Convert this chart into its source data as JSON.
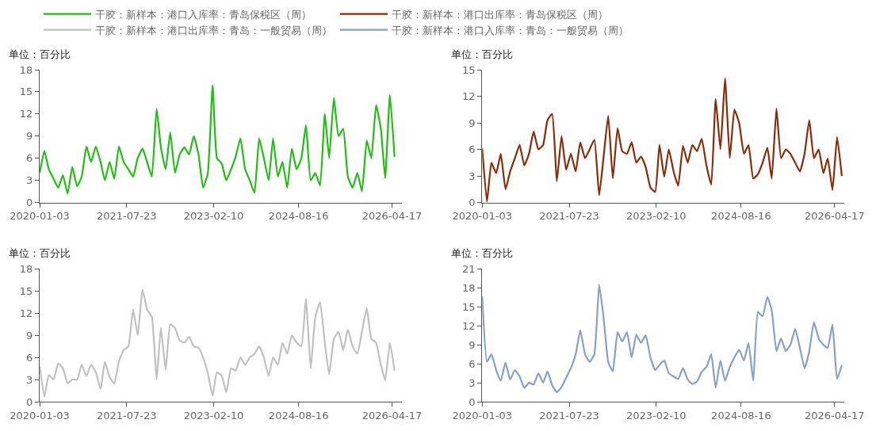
{
  "chart_data": [
    {
      "type": "line",
      "ylabel": "单位：百分比",
      "legend": "top",
      "xlim": [
        "2020-01-03",
        "2026-06-19"
      ],
      "xticks": [
        "2020-01-03",
        "2021-07-23",
        "2023-02-10",
        "2024-08-16",
        "2026-04-17"
      ],
      "ylim": [
        0,
        18
      ],
      "yticks": [
        0,
        3,
        6,
        9,
        12,
        15,
        18
      ],
      "x": [
        "2020-01-03",
        "2020-02-03",
        "2020-03-03",
        "2020-04-03",
        "2020-05-03",
        "2020-06-03",
        "2020-07-03",
        "2020-08-03",
        "2020-09-03",
        "2020-10-03",
        "2020-11-03",
        "2020-12-03",
        "2021-01-03",
        "2021-02-03",
        "2021-03-03",
        "2021-04-03",
        "2021-05-03",
        "2021-06-03",
        "2021-07-03",
        "2021-08-03",
        "2021-09-03",
        "2021-10-03",
        "2021-11-03",
        "2021-12-03",
        "2022-01-03",
        "2022-02-03",
        "2022-03-03",
        "2022-04-03",
        "2022-05-03",
        "2022-06-03",
        "2022-07-03",
        "2022-08-03",
        "2022-09-03",
        "2022-10-03",
        "2022-11-03",
        "2022-12-03",
        "2023-01-03",
        "2023-02-03",
        "2023-03-03",
        "2023-04-03",
        "2023-05-03",
        "2023-06-03",
        "2023-07-03",
        "2023-08-03",
        "2023-09-03",
        "2023-10-03",
        "2023-11-03",
        "2023-12-03",
        "2024-01-03",
        "2024-02-03",
        "2024-03-03",
        "2024-04-03",
        "2024-05-03",
        "2024-06-03",
        "2024-07-03",
        "2024-08-03",
        "2024-09-03",
        "2024-10-03",
        "2024-11-03",
        "2024-12-03",
        "2025-01-03",
        "2025-02-03",
        "2025-03-03",
        "2025-04-03",
        "2025-05-03",
        "2025-06-03",
        "2025-07-03",
        "2025-08-03",
        "2025-09-03",
        "2025-10-03",
        "2025-11-03",
        "2025-12-03",
        "2026-01-03",
        "2026-02-03",
        "2026-03-03",
        "2026-04-03",
        "2026-05-03"
      ],
      "series": [
        {
          "name": "干胶：新样本：港口入库率：青岛保税区（周）",
          "color": "#1fbf12",
          "values": [
            4.0,
            7.0,
            4.5,
            3.2,
            2.0,
            3.7,
            1.2,
            4.8,
            2.2,
            3.5,
            7.6,
            5.5,
            7.6,
            5.5,
            3.0,
            5.5,
            3.2,
            7.6,
            5.5,
            4.5,
            3.5,
            6.0,
            7.3,
            5.5,
            3.5,
            12.7,
            7.5,
            4.5,
            9.5,
            4.0,
            6.5,
            7.5,
            6.5,
            9.0,
            6.5,
            2.0,
            4.0,
            15.9,
            6.0,
            5.3,
            3.0,
            4.5,
            6.2,
            8.7,
            4.5,
            3.0,
            1.3,
            8.7,
            6.0,
            3.0,
            8.7,
            3.5,
            5.5,
            2.0,
            7.3,
            4.5,
            6.0,
            10.5,
            3.0,
            4.0,
            2.3,
            12.0,
            6.0,
            14.2,
            9.0,
            10.0,
            3.5,
            2.0,
            4.0,
            1.5,
            8.4,
            6.0,
            13.2,
            10.0,
            3.3,
            14.6,
            6.2
          ]
        }
      ]
    },
    {
      "type": "line",
      "ylabel": "单位：百分比",
      "legend": "top",
      "xlim": [
        "2020-01-03",
        "2026-06-19"
      ],
      "xticks": [
        "2020-01-03",
        "2021-07-23",
        "2023-02-10",
        "2024-08-16",
        "2026-04-17"
      ],
      "ylim": [
        0,
        15
      ],
      "yticks": [
        0,
        3,
        6,
        9,
        12,
        15
      ],
      "x": [
        "2020-01-03",
        "2020-02-03",
        "2020-03-03",
        "2020-04-03",
        "2020-05-03",
        "2020-06-03",
        "2020-07-03",
        "2020-08-03",
        "2020-09-03",
        "2020-10-03",
        "2020-11-03",
        "2020-12-03",
        "2021-01-03",
        "2021-02-03",
        "2021-03-03",
        "2021-04-03",
        "2021-05-03",
        "2021-06-03",
        "2021-07-03",
        "2021-08-03",
        "2021-09-03",
        "2021-10-03",
        "2021-11-03",
        "2021-12-03",
        "2022-01-03",
        "2022-02-03",
        "2022-03-03",
        "2022-04-03",
        "2022-05-03",
        "2022-06-03",
        "2022-07-03",
        "2022-08-03",
        "2022-09-03",
        "2022-10-03",
        "2022-11-03",
        "2022-12-03",
        "2023-01-03",
        "2023-02-03",
        "2023-03-03",
        "2023-04-03",
        "2023-05-03",
        "2023-06-03",
        "2023-07-03",
        "2023-08-03",
        "2023-09-03",
        "2023-10-03",
        "2023-11-03",
        "2023-12-03",
        "2024-01-03",
        "2024-02-03",
        "2024-03-03",
        "2024-04-03",
        "2024-05-03",
        "2024-06-03",
        "2024-07-03",
        "2024-08-03",
        "2024-09-03",
        "2024-10-03",
        "2024-11-03",
        "2024-12-03",
        "2025-01-03",
        "2025-02-03",
        "2025-03-03",
        "2025-04-03",
        "2025-05-03",
        "2025-06-03",
        "2025-07-03",
        "2025-08-03",
        "2025-09-03",
        "2025-10-03",
        "2025-11-03",
        "2025-12-03",
        "2026-01-03",
        "2026-02-03",
        "2026-03-03",
        "2026-04-03",
        "2026-05-03",
        "2026-06-03"
      ],
      "series": [
        {
          "name": "干胶：新样本：港口出库率：青岛保税区（周）",
          "color": "#8b2a06",
          "values": [
            6.1,
            0.1,
            4.5,
            3.3,
            5.5,
            1.5,
            3.5,
            5.0,
            6.5,
            4.2,
            5.5,
            8.0,
            6.0,
            6.5,
            9.3,
            10.0,
            2.4,
            7.5,
            3.7,
            5.5,
            3.5,
            6.8,
            5.0,
            6.0,
            7.1,
            0.8,
            5.0,
            9.8,
            2.7,
            8.4,
            5.8,
            5.5,
            6.8,
            4.5,
            5.2,
            4.0,
            1.7,
            1.2,
            6.5,
            2.9,
            6.0,
            3.5,
            1.9,
            6.4,
            4.5,
            6.5,
            5.8,
            7.2,
            4.2,
            2.0,
            11.7,
            6.0,
            14.0,
            5.0,
            10.5,
            9.0,
            5.5,
            6.5,
            2.7,
            3.2,
            4.5,
            6.2,
            2.7,
            10.6,
            5.0,
            6.0,
            5.5,
            4.5,
            3.5,
            5.5,
            9.3,
            5.0,
            6.0,
            3.3,
            5.0,
            1.4,
            7.4,
            3.0
          ]
        }
      ]
    },
    {
      "type": "line",
      "ylabel": "单位：百分比",
      "legend": "top",
      "xlim": [
        "2020-01-03",
        "2026-06-19"
      ],
      "xticks": [
        "2020-01-03",
        "2021-07-23",
        "2023-02-10",
        "2024-08-16",
        "2026-04-17"
      ],
      "ylim": [
        0,
        18
      ],
      "yticks": [
        0,
        3,
        6,
        9,
        12,
        15,
        18
      ],
      "x": [
        "2020-01-03",
        "2020-02-03",
        "2020-03-03",
        "2020-04-03",
        "2020-05-03",
        "2020-06-03",
        "2020-07-03",
        "2020-08-03",
        "2020-09-03",
        "2020-10-03",
        "2020-11-03",
        "2020-12-03",
        "2021-01-03",
        "2021-02-03",
        "2021-03-03",
        "2021-04-03",
        "2021-05-03",
        "2021-06-03",
        "2021-07-03",
        "2021-08-03",
        "2021-09-03",
        "2021-10-03",
        "2021-11-03",
        "2021-12-03",
        "2022-01-03",
        "2022-02-03",
        "2022-03-03",
        "2022-04-03",
        "2022-05-03",
        "2022-06-03",
        "2022-07-03",
        "2022-08-03",
        "2022-09-03",
        "2022-10-03",
        "2022-11-03",
        "2022-12-03",
        "2023-01-03",
        "2023-02-03",
        "2023-03-03",
        "2023-04-03",
        "2023-05-03",
        "2023-06-03",
        "2023-07-03",
        "2023-08-03",
        "2023-09-03",
        "2023-10-03",
        "2023-11-03",
        "2023-12-03",
        "2024-01-03",
        "2024-02-03",
        "2024-03-03",
        "2024-04-03",
        "2024-05-03",
        "2024-06-03",
        "2024-07-03",
        "2024-08-03",
        "2024-09-03",
        "2024-10-03",
        "2024-11-03",
        "2024-12-03",
        "2025-01-03",
        "2025-02-03",
        "2025-03-03",
        "2025-04-03",
        "2025-05-03",
        "2025-06-03",
        "2025-07-03",
        "2025-08-03",
        "2025-09-03",
        "2025-10-03",
        "2025-11-03",
        "2025-12-03",
        "2026-01-03",
        "2026-02-03",
        "2026-03-03",
        "2026-04-03",
        "2026-05-03"
      ],
      "series": [
        {
          "name": "干胶：新样本：港口出库率：青岛：一般贸易（周）",
          "color": "#c0c0c0",
          "values": [
            4.8,
            0.7,
            3.6,
            3.0,
            5.2,
            4.5,
            2.5,
            3.0,
            3.0,
            5.0,
            3.5,
            5.0,
            4.0,
            1.7,
            5.4,
            3.3,
            2.5,
            5.5,
            7.0,
            7.5,
            12.5,
            9.0,
            15.2,
            12.5,
            11.5,
            3.0,
            10.0,
            4.3,
            10.5,
            10.0,
            8.3,
            8.0,
            8.8,
            7.5,
            7.3,
            6.0,
            3.8,
            0.8,
            4.0,
            3.5,
            1.3,
            4.5,
            4.2,
            6.0,
            5.0,
            6.0,
            6.5,
            7.5,
            6.0,
            3.5,
            6.0,
            5.0,
            8.0,
            6.5,
            9.0,
            8.0,
            7.5,
            14.0,
            4.5,
            11.5,
            13.5,
            8.0,
            3.7,
            8.5,
            9.5,
            7.0,
            9.8,
            7.5,
            6.5,
            9.5,
            12.7,
            8.5,
            8.0,
            5.0,
            2.9,
            8.0,
            4.2
          ]
        }
      ]
    },
    {
      "type": "line",
      "ylabel": "单位：百分比",
      "legend": "top",
      "xlim": [
        "2020-01-03",
        "2026-06-19"
      ],
      "xticks": [
        "2020-01-03",
        "2021-07-23",
        "2023-02-10",
        "2024-08-16",
        "2026-04-17"
      ],
      "ylim": [
        0,
        21
      ],
      "yticks": [
        0,
        3,
        6,
        9,
        12,
        15,
        18,
        21
      ],
      "x": [
        "2020-01-03",
        "2020-02-03",
        "2020-03-03",
        "2020-04-03",
        "2020-05-03",
        "2020-06-03",
        "2020-07-03",
        "2020-08-03",
        "2020-09-03",
        "2020-10-03",
        "2020-11-03",
        "2020-12-03",
        "2021-01-03",
        "2021-02-03",
        "2021-03-03",
        "2021-04-03",
        "2021-05-03",
        "2021-06-03",
        "2021-07-03",
        "2021-08-03",
        "2021-09-03",
        "2021-10-03",
        "2021-11-03",
        "2021-12-03",
        "2022-01-03",
        "2022-02-03",
        "2022-03-03",
        "2022-04-03",
        "2022-05-03",
        "2022-06-03",
        "2022-07-03",
        "2022-08-03",
        "2022-09-03",
        "2022-10-03",
        "2022-11-03",
        "2022-12-03",
        "2023-01-03",
        "2023-02-03",
        "2023-03-03",
        "2023-04-03",
        "2023-05-03",
        "2023-06-03",
        "2023-07-03",
        "2023-08-03",
        "2023-09-03",
        "2023-10-03",
        "2023-11-03",
        "2023-12-03",
        "2024-01-03",
        "2024-02-03",
        "2024-03-03",
        "2024-04-03",
        "2024-05-03",
        "2024-06-03",
        "2024-07-03",
        "2024-08-03",
        "2024-09-03",
        "2024-10-03",
        "2024-11-03",
        "2024-12-03",
        "2025-01-03",
        "2025-02-03",
        "2025-03-03",
        "2025-04-03",
        "2025-05-03",
        "2025-06-03",
        "2025-07-03",
        "2025-08-03",
        "2025-09-03",
        "2025-10-03",
        "2025-11-03",
        "2025-12-03",
        "2026-01-03",
        "2026-02-03",
        "2026-03-03",
        "2026-04-03",
        "2026-05-03",
        "2026-06-03"
      ],
      "series": [
        {
          "name": "干胶：新样本：港口入库率：青岛：一般贸易（周）",
          "color": "#86a0c8",
          "values": [
            16.7,
            6.3,
            7.5,
            5.0,
            3.3,
            6.2,
            3.5,
            5.0,
            4.0,
            2.2,
            3.0,
            2.7,
            4.5,
            3.0,
            4.8,
            2.6,
            1.5,
            2.3,
            3.8,
            5.3,
            7.5,
            11.3,
            7.5,
            6.3,
            7.5,
            18.5,
            13.5,
            6.3,
            4.8,
            11.0,
            9.5,
            11.0,
            7.0,
            10.6,
            9.3,
            10.5,
            7.0,
            5.0,
            5.8,
            6.5,
            4.5,
            4.0,
            3.6,
            5.3,
            3.5,
            2.8,
            3.2,
            4.7,
            5.5,
            7.5,
            2.2,
            6.5,
            3.3,
            5.5,
            7.0,
            8.2,
            6.5,
            9.3,
            3.3,
            14.2,
            13.5,
            16.6,
            14.5,
            8.0,
            10.0,
            8.0,
            9.0,
            11.5,
            8.5,
            5.3,
            8.0,
            12.6,
            10.0,
            9.0,
            8.5,
            12.2,
            3.6,
            5.8
          ]
        }
      ]
    }
  ]
}
